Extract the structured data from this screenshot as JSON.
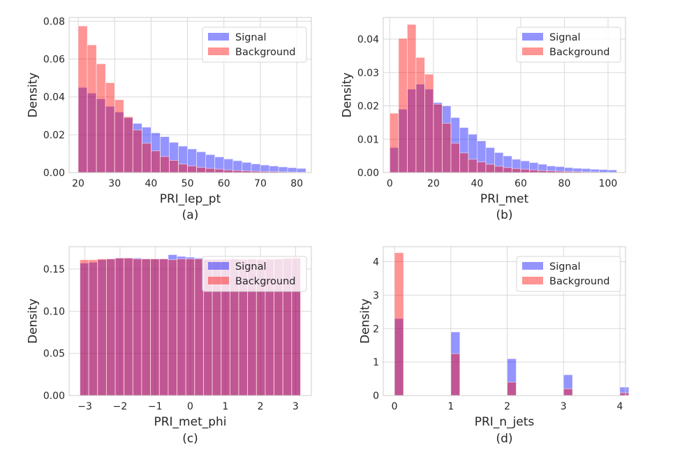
{
  "colors": {
    "signal": "#0000ff",
    "background": "#ff0000",
    "grid": "#d9d9d9",
    "frame": "#cccccc"
  },
  "chart_data": [
    {
      "type": "bar",
      "caption": "(a)",
      "xlabel": "PRI_lep_pt",
      "ylabel": "Density",
      "xlim": [
        17.5,
        84
      ],
      "ylim": [
        0,
        0.082
      ],
      "xticks": [
        20,
        30,
        40,
        50,
        60,
        70,
        80
      ],
      "yticks": [
        0.0,
        0.02,
        0.04,
        0.06,
        0.08
      ],
      "ytick_decimals": 2,
      "grid": true,
      "legend_position": "top-right",
      "bin_width": 2.5,
      "bin_starts": [
        20,
        22.5,
        25,
        27.5,
        30,
        32.5,
        35,
        37.5,
        40,
        42.5,
        45,
        47.5,
        50,
        52.5,
        55,
        57.5,
        60,
        62.5,
        65,
        67.5,
        70,
        72.5,
        75,
        77.5,
        80
      ],
      "series": [
        {
          "name": "Signal",
          "values": [
            0.045,
            0.042,
            0.039,
            0.035,
            0.032,
            0.029,
            0.026,
            0.024,
            0.021,
            0.019,
            0.016,
            0.014,
            0.0125,
            0.011,
            0.0095,
            0.0083,
            0.0072,
            0.0063,
            0.0054,
            0.0046,
            0.004,
            0.0035,
            0.003,
            0.0026,
            0.0022
          ]
        },
        {
          "name": "Background",
          "values": [
            0.0775,
            0.0675,
            0.0575,
            0.0475,
            0.0385,
            0.0295,
            0.0225,
            0.0155,
            0.0115,
            0.0085,
            0.0065,
            0.0045,
            0.0035,
            0.0028,
            0.0022,
            0.0018,
            0.0014,
            0.0011,
            0.0009,
            0.0007,
            0.0006,
            0.0005,
            0.0004,
            0.0003,
            0.0002
          ]
        }
      ]
    },
    {
      "type": "bar",
      "caption": "(b)",
      "xlabel": "PRI_met",
      "ylabel": "Density",
      "xlim": [
        -3,
        108
      ],
      "ylim": [
        0,
        0.0465
      ],
      "xticks": [
        0,
        20,
        40,
        60,
        80,
        100
      ],
      "yticks": [
        0.0,
        0.01,
        0.02,
        0.03,
        0.04
      ],
      "ytick_decimals": 2,
      "grid": true,
      "legend_position": "top-right",
      "bin_width": 4,
      "bin_starts": [
        0,
        4,
        8,
        12,
        16,
        20,
        24,
        28,
        32,
        36,
        40,
        44,
        48,
        52,
        56,
        60,
        64,
        68,
        72,
        76,
        80,
        84,
        88,
        92,
        96,
        100
      ],
      "series": [
        {
          "name": "Signal",
          "values": [
            0.0075,
            0.019,
            0.025,
            0.0265,
            0.025,
            0.021,
            0.02,
            0.0165,
            0.0135,
            0.0115,
            0.0095,
            0.0075,
            0.006,
            0.005,
            0.004,
            0.0035,
            0.003,
            0.0025,
            0.002,
            0.0018,
            0.0015,
            0.0013,
            0.0012,
            0.001,
            0.0009,
            0.0008
          ]
        },
        {
          "name": "Background",
          "values": [
            0.0178,
            0.0402,
            0.0444,
            0.0345,
            0.0295,
            0.0205,
            0.0148,
            0.0088,
            0.0059,
            0.004,
            0.0032,
            0.0025,
            0.0019,
            0.0015,
            0.0012,
            0.001,
            0.0008,
            0.0006,
            0.0005,
            0.0004,
            0.0003,
            0.0003,
            0.0002,
            0.0002,
            0.0001,
            0.0001
          ]
        }
      ]
    },
    {
      "type": "bar",
      "caption": "(c)",
      "xlabel": "PRI_met_phi",
      "ylabel": "Density",
      "xlim": [
        -3.45,
        3.45
      ],
      "ylim": [
        0,
        0.1765
      ],
      "xticks": [
        -3,
        -2,
        -1,
        0,
        1,
        2,
        3
      ],
      "xtick_labels": [
        "−3",
        "−2",
        "−1",
        "0",
        "1",
        "2",
        "3"
      ],
      "yticks": [
        0.0,
        0.05,
        0.1,
        0.15
      ],
      "ytick_decimals": 2,
      "grid": true,
      "legend_position": "top-right",
      "bin_width": 0.2513,
      "bin_starts": [
        -3.1416,
        -2.8903,
        -2.639,
        -2.3876,
        -2.1363,
        -1.885,
        -1.6336,
        -1.3823,
        -1.131,
        -0.8796,
        -0.6283,
        -0.377,
        -0.1257,
        0.1257,
        0.377,
        0.6283,
        0.8796,
        1.131,
        1.3823,
        1.6336,
        1.885,
        2.1363,
        2.3876,
        2.639,
        2.8903
      ],
      "series": [
        {
          "name": "Signal",
          "values": [
            0.157,
            0.158,
            0.161,
            0.162,
            0.163,
            0.163,
            0.163,
            0.162,
            0.162,
            0.162,
            0.167,
            0.165,
            0.164,
            0.163,
            0.162,
            0.162,
            0.161,
            0.162,
            0.161,
            0.162,
            0.161,
            0.161,
            0.162,
            0.162,
            0.163
          ]
        },
        {
          "name": "Background",
          "values": [
            0.161,
            0.161,
            0.162,
            0.162,
            0.163,
            0.163,
            0.162,
            0.162,
            0.162,
            0.162,
            0.161,
            0.162,
            0.162,
            0.162,
            0.161,
            0.161,
            0.162,
            0.162,
            0.162,
            0.162,
            0.162,
            0.162,
            0.162,
            0.163,
            0.163
          ]
        }
      ]
    },
    {
      "type": "bar",
      "caption": "(d)",
      "xlabel": "PRI_n_jets",
      "ylabel": "Density",
      "xlim": [
        -0.2,
        4.1
      ],
      "ylim": [
        0,
        4.45
      ],
      "xticks": [
        0,
        1,
        2,
        3,
        4
      ],
      "yticks": [
        0,
        1,
        2,
        3,
        4
      ],
      "ytick_decimals": 0,
      "grid": true,
      "legend_position": "top-right",
      "bin_width": 0.16,
      "bin_starts": [
        0,
        1,
        2,
        3,
        4
      ],
      "series": [
        {
          "name": "Signal",
          "values": [
            2.3,
            1.9,
            1.1,
            0.62,
            0.25
          ]
        },
        {
          "name": "Background",
          "values": [
            4.27,
            1.25,
            0.4,
            0.2,
            0.08
          ]
        }
      ]
    }
  ]
}
